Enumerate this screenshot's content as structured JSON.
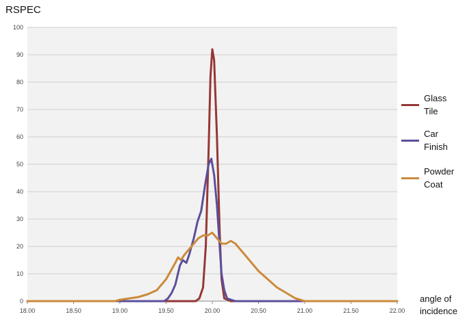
{
  "chart_data": {
    "type": "line",
    "title": "RSPEC",
    "xlabel": "angle of\nincidence",
    "ylabel": "",
    "xlim": [
      18.0,
      22.0
    ],
    "ylim": [
      0,
      100
    ],
    "x_ticks": [
      "18.00",
      "18.50",
      "19.00",
      "19.50",
      "20.00",
      "20.50",
      "21.00",
      "21.50",
      "22.00"
    ],
    "y_ticks": [
      "0",
      "10",
      "20",
      "30",
      "40",
      "50",
      "60",
      "70",
      "80",
      "90",
      "100"
    ],
    "grid": true,
    "legend_position": "right",
    "series": [
      {
        "name": "Glass\nTile",
        "color": "#953735",
        "points": [
          [
            18.0,
            0
          ],
          [
            19.5,
            0
          ],
          [
            19.82,
            0
          ],
          [
            19.86,
            1
          ],
          [
            19.9,
            5
          ],
          [
            19.93,
            20
          ],
          [
            19.96,
            55
          ],
          [
            19.98,
            82
          ],
          [
            20.0,
            92
          ],
          [
            20.02,
            88
          ],
          [
            20.05,
            60
          ],
          [
            20.08,
            25
          ],
          [
            20.1,
            8
          ],
          [
            20.13,
            1
          ],
          [
            20.2,
            0
          ],
          [
            22.0,
            0
          ]
        ]
      },
      {
        "name": "Car\nFinish",
        "color": "#5b4f9b",
        "points": [
          [
            18.0,
            0
          ],
          [
            19.3,
            0
          ],
          [
            19.48,
            0
          ],
          [
            19.52,
            1
          ],
          [
            19.56,
            3
          ],
          [
            19.6,
            6
          ],
          [
            19.65,
            13
          ],
          [
            19.68,
            15
          ],
          [
            19.72,
            14
          ],
          [
            19.75,
            17
          ],
          [
            19.8,
            23
          ],
          [
            19.84,
            29
          ],
          [
            19.88,
            33
          ],
          [
            19.92,
            42
          ],
          [
            19.96,
            50
          ],
          [
            19.99,
            52
          ],
          [
            20.02,
            46
          ],
          [
            20.05,
            35
          ],
          [
            20.08,
            20
          ],
          [
            20.1,
            10
          ],
          [
            20.13,
            4
          ],
          [
            20.16,
            1
          ],
          [
            20.25,
            0
          ],
          [
            22.0,
            0
          ]
        ]
      },
      {
        "name": "Powder\nCoat",
        "color": "#cb8a3a",
        "points": [
          [
            18.0,
            0
          ],
          [
            18.95,
            0
          ],
          [
            19.0,
            0.5
          ],
          [
            19.1,
            1
          ],
          [
            19.2,
            1.5
          ],
          [
            19.3,
            2.5
          ],
          [
            19.4,
            4
          ],
          [
            19.5,
            8
          ],
          [
            19.55,
            11
          ],
          [
            19.6,
            14
          ],
          [
            19.63,
            16
          ],
          [
            19.66,
            15
          ],
          [
            19.7,
            17
          ],
          [
            19.75,
            19
          ],
          [
            19.8,
            21
          ],
          [
            19.85,
            23
          ],
          [
            19.9,
            24
          ],
          [
            19.95,
            24
          ],
          [
            20.0,
            25
          ],
          [
            20.05,
            23
          ],
          [
            20.1,
            21
          ],
          [
            20.15,
            21
          ],
          [
            20.2,
            22
          ],
          [
            20.25,
            21
          ],
          [
            20.3,
            19
          ],
          [
            20.35,
            17
          ],
          [
            20.4,
            15
          ],
          [
            20.45,
            13
          ],
          [
            20.5,
            11
          ],
          [
            20.6,
            8
          ],
          [
            20.7,
            5
          ],
          [
            20.8,
            3
          ],
          [
            20.9,
            1
          ],
          [
            21.0,
            0
          ],
          [
            21.5,
            0
          ],
          [
            22.0,
            0
          ]
        ]
      }
    ]
  }
}
